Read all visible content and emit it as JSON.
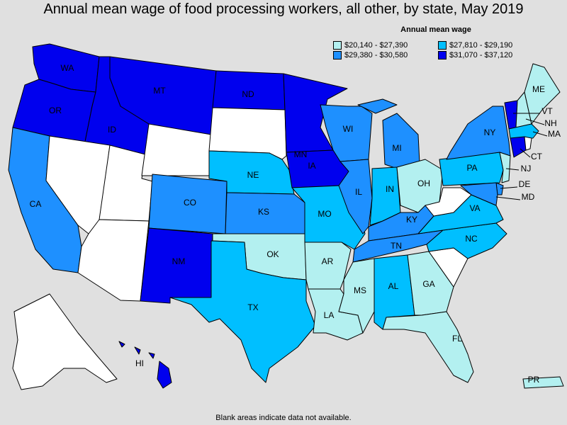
{
  "title": "Annual mean wage of food processing workers, all other, by state, May 2019",
  "legend": {
    "title": "Annual mean wage",
    "items": [
      {
        "label": "$20,140 - $27,390",
        "color": "#b3f0f0"
      },
      {
        "label": "$27,810 - $29,190",
        "color": "#00bfff"
      },
      {
        "label": "$29,380 - $30,580",
        "color": "#1e90ff"
      },
      {
        "label": "$31,070 - $37,120",
        "color": "#0000ee"
      }
    ]
  },
  "footnote": "Blank areas indicate data not available.",
  "colors": {
    "none": "#ffffff",
    "c1": "#b3f0f0",
    "c2": "#00bfff",
    "c3": "#1e90ff",
    "c4": "#0000ee",
    "background": "#e0e0e0"
  },
  "states": {
    "WA": {
      "label": "WA",
      "class": "c4"
    },
    "OR": {
      "label": "OR",
      "class": "c4"
    },
    "CA": {
      "label": "CA",
      "class": "c3"
    },
    "ID": {
      "label": "ID",
      "class": "c4"
    },
    "NV": {
      "label": "",
      "class": "none"
    },
    "UT": {
      "label": "",
      "class": "none"
    },
    "AZ": {
      "label": "",
      "class": "none"
    },
    "MT": {
      "label": "MT",
      "class": "c4"
    },
    "WY": {
      "label": "",
      "class": "none"
    },
    "CO": {
      "label": "CO",
      "class": "c3"
    },
    "NM": {
      "label": "NM",
      "class": "c4"
    },
    "ND": {
      "label": "ND",
      "class": "c4"
    },
    "SD": {
      "label": "",
      "class": "none"
    },
    "NE": {
      "label": "NE",
      "class": "c2"
    },
    "KS": {
      "label": "KS",
      "class": "c3"
    },
    "OK": {
      "label": "OK",
      "class": "c1"
    },
    "TX": {
      "label": "TX",
      "class": "c2"
    },
    "MN": {
      "label": "MN",
      "class": "c4"
    },
    "IA": {
      "label": "IA",
      "class": "c4"
    },
    "MO": {
      "label": "MO",
      "class": "c2"
    },
    "AR": {
      "label": "AR",
      "class": "c1"
    },
    "LA": {
      "label": "LA",
      "class": "c1"
    },
    "WI": {
      "label": "WI",
      "class": "c3"
    },
    "IL": {
      "label": "IL",
      "class": "c3"
    },
    "MI": {
      "label": "MI",
      "class": "c3"
    },
    "IN": {
      "label": "IN",
      "class": "c2"
    },
    "OH": {
      "label": "OH",
      "class": "c1"
    },
    "KY": {
      "label": "KY",
      "class": "c3"
    },
    "TN": {
      "label": "TN",
      "class": "c3"
    },
    "MS": {
      "label": "MS",
      "class": "c1"
    },
    "AL": {
      "label": "AL",
      "class": "c2"
    },
    "GA": {
      "label": "GA",
      "class": "c1"
    },
    "FL": {
      "label": "FL",
      "class": "c1"
    },
    "SC": {
      "label": "",
      "class": "none"
    },
    "NC": {
      "label": "NC",
      "class": "c2"
    },
    "VA": {
      "label": "VA",
      "class": "c2"
    },
    "WV": {
      "label": "",
      "class": "none"
    },
    "PA": {
      "label": "PA",
      "class": "c2"
    },
    "NY": {
      "label": "NY",
      "class": "c3"
    },
    "VT": {
      "label": "VT",
      "class": "c4"
    },
    "NH": {
      "label": "NH",
      "class": "c1"
    },
    "ME": {
      "label": "ME",
      "class": "c1"
    },
    "MA": {
      "label": "MA",
      "class": "c2"
    },
    "CT": {
      "label": "CT",
      "class": "c4"
    },
    "RI": {
      "label": "",
      "class": "none"
    },
    "NJ": {
      "label": "NJ",
      "class": "c1"
    },
    "DE": {
      "label": "DE",
      "class": "c3"
    },
    "MD": {
      "label": "MD",
      "class": "c3"
    },
    "AK": {
      "label": "",
      "class": "none"
    },
    "HI": {
      "label": "HI",
      "class": "c4"
    },
    "PR": {
      "label": "PR",
      "class": "c1"
    }
  }
}
